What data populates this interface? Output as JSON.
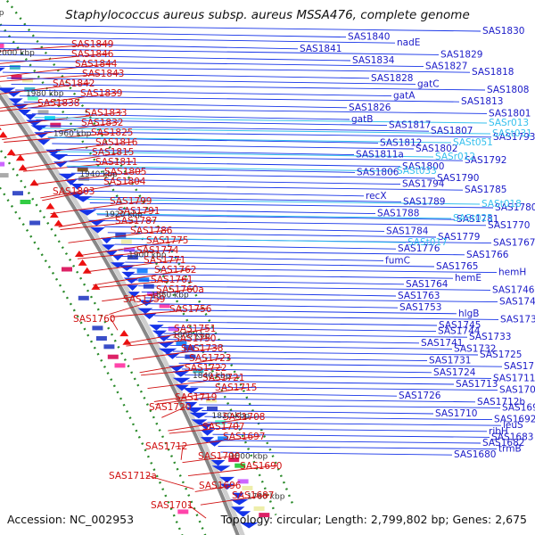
{
  "title": "Staphylococcus aureus subsp. aureus MSSA476, complete genome",
  "accession": "Accession: NC_002953",
  "summary": {
    "topology": "Topology: circular",
    "length": "Length: 2,799,802 bp",
    "genes": "Genes: 2,675"
  },
  "colors": {
    "backbone": "#888888",
    "forward_genes": "#1533e8",
    "reverse_genes": "#ee1111",
    "reverse_labels": "#d01010",
    "forward_labels": "#1a1ac8",
    "rna_labels": "#35c0ee",
    "cog_ring_guides": "#2a8a2a"
  },
  "scale_labels": [
    "2020 kbp",
    "2000 kbp",
    "1980 kbp",
    "1960 kbp",
    "1940 kbp",
    "1920 kbp",
    "1900 kbp",
    "1880 kbp",
    "1860 kbp",
    "1840 kbp",
    "1820 kbp",
    "1800 kbp",
    "1780 kbp"
  ],
  "reverse_strand_labels": [
    "SAS1849",
    "SAS1846",
    "SAS1844",
    "SAS1843",
    "SAS1842",
    "SAS1839",
    "SAS1838",
    "SAS1833",
    "SAS1832",
    "SAS1825",
    "SAS1816",
    "SAS1815",
    "SAS1811",
    "SAS1805",
    "SAS1804",
    "SAS1803",
    "SAS1799",
    "SAS1791",
    "SAS1787",
    "SAS1786",
    "SAS1775",
    "SAS1774",
    "SAS1771",
    "SAS1762",
    "SAS1761",
    "SAS1760a",
    "SAS1759",
    "SAS1756",
    "SAS1760",
    "SAS1751",
    "SAS1750",
    "SAS1738",
    "SAS1723",
    "SAS1722",
    "SAS1721",
    "SAS1715",
    "SAS1719",
    "SAS1720",
    "SAS1708",
    "SAS1707",
    "SAS1697",
    "SAS1712",
    "SAS1700",
    "SAS1690",
    "SAS1712a",
    "SAS1696",
    "SAS1687",
    "SAS1701"
  ],
  "forward_strand_labels": [
    "SAS1830",
    "SAS1840",
    "nadE",
    "SAS1841",
    "SAS1829",
    "SAS1834",
    "SAS1827",
    "SAS1818",
    "SAS1828",
    "gatC",
    "SAS1808",
    "gatA",
    "SAS1813",
    "SAS1826",
    "SAS1801",
    "gatB",
    "SAS1817",
    "SAS1807",
    "SAS1793",
    "SAS1812",
    "SAS1802",
    "SAS1811a",
    "SAS1792",
    "SAS1800",
    "SAS1806",
    "SAS1790",
    "SAS1794",
    "SAS1785",
    "recX",
    "SAS1789",
    "SAS1780",
    "SAS1788",
    "SAS1781",
    "SAS1770",
    "SAS1784",
    "SAS1779",
    "SAS1767",
    "SAS1776",
    "SAS1766",
    "fumC",
    "SAS1765",
    "hemH",
    "hemE",
    "SAS1764",
    "SAS1746",
    "SAS1763",
    "SAS1742",
    "SAS1753",
    "hlgB",
    "SAS1734",
    "SAS1745",
    "SAS1744",
    "SAS1733",
    "SAS1741",
    "SAS1732",
    "SAS1725",
    "SAS1731",
    "SAS1714",
    "SAS1724",
    "SAS1711",
    "SAS1713",
    "SAS1702",
    "SAS1726",
    "SAS1712b",
    "SAS1695",
    "SAS1710",
    "SAS1692",
    "leuS",
    "ribH",
    "SAS1683",
    "SAS1682",
    "trmB",
    "SAS1680"
  ],
  "rna_labels": [
    "SASr013",
    "SASt031",
    "SASt051",
    "SASr012",
    "SASt033",
    "SASt018",
    "SASt025",
    "SASt017"
  ]
}
